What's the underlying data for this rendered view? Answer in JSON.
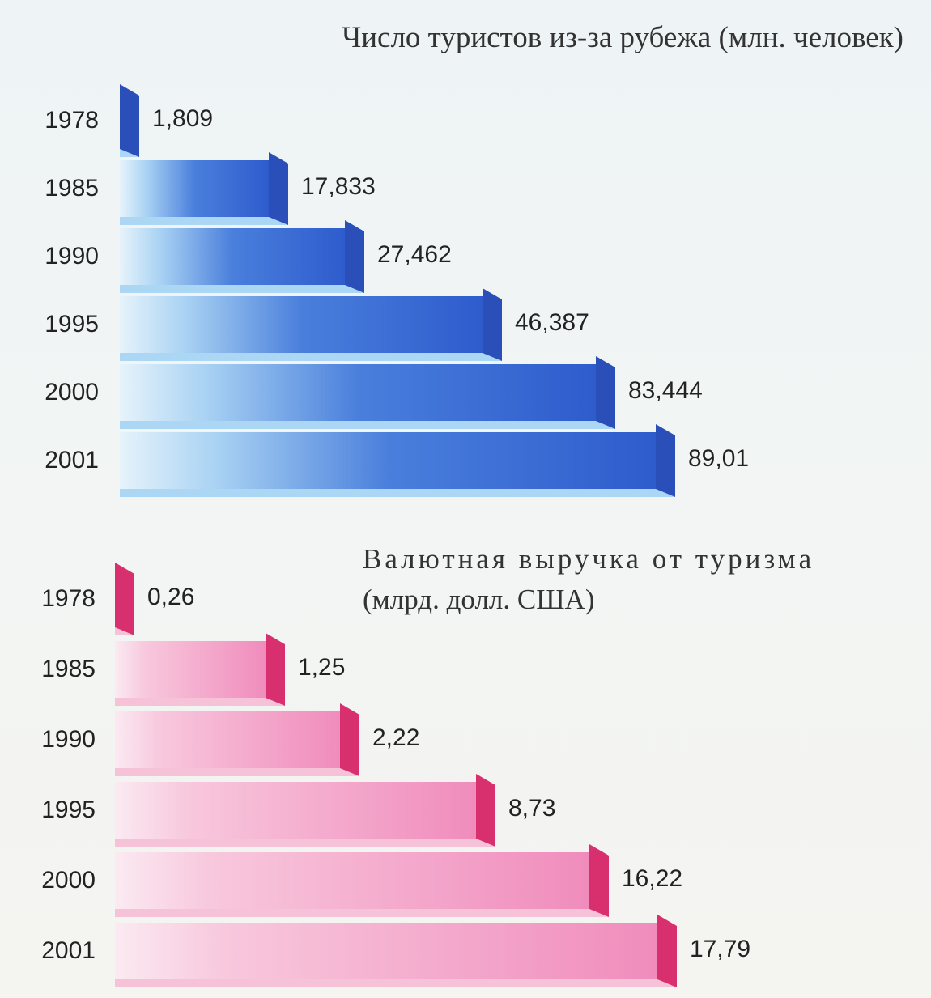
{
  "chart_data": [
    {
      "type": "bar",
      "title": "Число туристов из-за рубежа (млн. человек)",
      "subtitle": "",
      "categories": [
        "1978",
        "1985",
        "1990",
        "1995",
        "2000",
        "2001"
      ],
      "values": [
        1.809,
        17.833,
        27.462,
        46.387,
        83.444,
        89.01
      ],
      "value_labels": [
        "1,809",
        "17,833",
        "27,462",
        "46,387",
        "83,444",
        "89,01"
      ],
      "orientation": "horizontal",
      "xlim": [
        0,
        89.01
      ],
      "grid": false,
      "colors": {
        "front": "#2f5fd0",
        "side": "#2a4fb8",
        "light": "#dceefa",
        "top": "#8cc6f0"
      }
    },
    {
      "type": "bar",
      "title": "Валютная выручка от туризма",
      "subtitle": "(млрд. долл. США)",
      "categories": [
        "1978",
        "1985",
        "1990",
        "1995",
        "2000",
        "2001"
      ],
      "values": [
        0.26,
        1.25,
        2.22,
        8.73,
        16.22,
        17.79
      ],
      "value_labels": [
        "0,26",
        "1,25",
        "2,22",
        "8,73",
        "16,22",
        "17,79"
      ],
      "orientation": "horizontal",
      "grid": false,
      "colors": {
        "front": "#f08cbc",
        "side": "#d8306e",
        "light": "#fbe6ef",
        "top": "#f6b9d4"
      }
    }
  ]
}
